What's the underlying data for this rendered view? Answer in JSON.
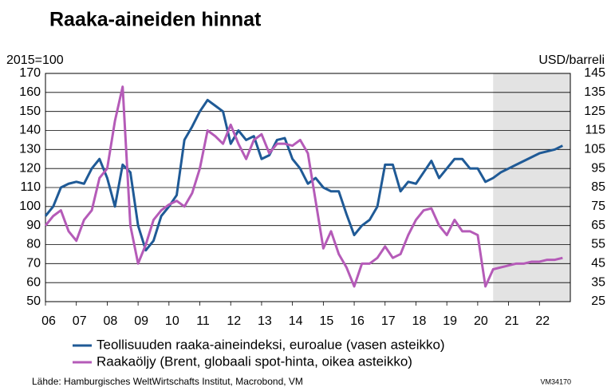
{
  "chart_data": {
    "type": "line",
    "title": "Raaka-aineiden hinnat",
    "y_label": "2015=100",
    "y2_label": "USD/barreli",
    "source": "Lähde: Hamburgisches WeltWirtschafts Institut, Macrobond, VM",
    "code": "VM34170",
    "forecast_start": 2020.5,
    "x": [
      2006,
      2006.25,
      2006.5,
      2006.75,
      2007,
      2007.25,
      2007.5,
      2007.75,
      2008,
      2008.25,
      2008.5,
      2008.75,
      2009,
      2009.25,
      2009.5,
      2009.75,
      2010,
      2010.25,
      2010.5,
      2010.75,
      2011,
      2011.25,
      2011.5,
      2011.75,
      2012,
      2012.25,
      2012.5,
      2012.75,
      2013,
      2013.25,
      2013.5,
      2013.75,
      2014,
      2014.25,
      2014.5,
      2014.75,
      2015,
      2015.25,
      2015.5,
      2015.75,
      2016,
      2016.25,
      2016.5,
      2016.75,
      2017,
      2017.25,
      2017.5,
      2017.75,
      2018,
      2018.25,
      2018.5,
      2018.75,
      2019,
      2019.25,
      2019.5,
      2019.75,
      2020,
      2020.25,
      2020.5,
      2020.75,
      2021,
      2021.25,
      2021.5,
      2021.75,
      2022,
      2022.25,
      2022.5,
      2022.75
    ],
    "series": [
      {
        "name": "Teollisuuden raaka-aineindeksi, euroalue (vasen asteikko)",
        "color": "#1f5a96",
        "axis": "y",
        "values": [
          95,
          100,
          110,
          112,
          113,
          112,
          120,
          125,
          115,
          100,
          122,
          118,
          90,
          77,
          82,
          95,
          100,
          106,
          135,
          142,
          150,
          156,
          153,
          150,
          133,
          140,
          135,
          137,
          125,
          127,
          135,
          136,
          125,
          120,
          112,
          115,
          110,
          108,
          108,
          96,
          85,
          90,
          93,
          100,
          122,
          122,
          108,
          113,
          112,
          118,
          124,
          115,
          120,
          125,
          125,
          120,
          120,
          113,
          115,
          118,
          120,
          122,
          124,
          126,
          128,
          129,
          130,
          132
        ]
      },
      {
        "name": "Raakaöljy (Brent, globaali spot-hinta, oikea asteikko)",
        "color": "#b55bb8",
        "axis": "y2",
        "values": [
          65,
          70,
          73,
          62,
          57,
          68,
          73,
          90,
          95,
          120,
          138,
          65,
          45,
          55,
          68,
          73,
          76,
          78,
          75,
          82,
          95,
          115,
          112,
          108,
          118,
          108,
          100,
          110,
          113,
          103,
          108,
          108,
          107,
          110,
          103,
          78,
          53,
          62,
          50,
          43,
          33,
          45,
          45,
          48,
          54,
          48,
          50,
          60,
          68,
          73,
          74,
          65,
          60,
          68,
          62,
          62,
          60,
          33,
          42,
          43,
          44,
          45,
          45,
          46,
          46,
          47,
          47,
          48
        ]
      }
    ],
    "xlim": [
      2006,
      2023
    ],
    "xticks": [
      {
        "value": 2006,
        "label": "06"
      },
      {
        "value": 2007,
        "label": "07"
      },
      {
        "value": 2008,
        "label": "08"
      },
      {
        "value": 2009,
        "label": "09"
      },
      {
        "value": 2010,
        "label": "10"
      },
      {
        "value": 2011,
        "label": "11"
      },
      {
        "value": 2012,
        "label": "12"
      },
      {
        "value": 2013,
        "label": "13"
      },
      {
        "value": 2014,
        "label": "14"
      },
      {
        "value": 2015,
        "label": "15"
      },
      {
        "value": 2016,
        "label": "16"
      },
      {
        "value": 2017,
        "label": "17"
      },
      {
        "value": 2018,
        "label": "18"
      },
      {
        "value": 2019,
        "label": "19"
      },
      {
        "value": 2020,
        "label": "20"
      },
      {
        "value": 2021,
        "label": "21"
      },
      {
        "value": 2022,
        "label": "22"
      }
    ],
    "ylim": [
      50,
      170
    ],
    "yticks": [
      50,
      60,
      70,
      80,
      90,
      100,
      110,
      120,
      130,
      140,
      150,
      160,
      170
    ],
    "y2lim": [
      25,
      145
    ],
    "y2ticks": [
      25,
      35,
      45,
      55,
      65,
      75,
      85,
      95,
      105,
      115,
      125,
      135,
      145
    ],
    "grid": true
  }
}
